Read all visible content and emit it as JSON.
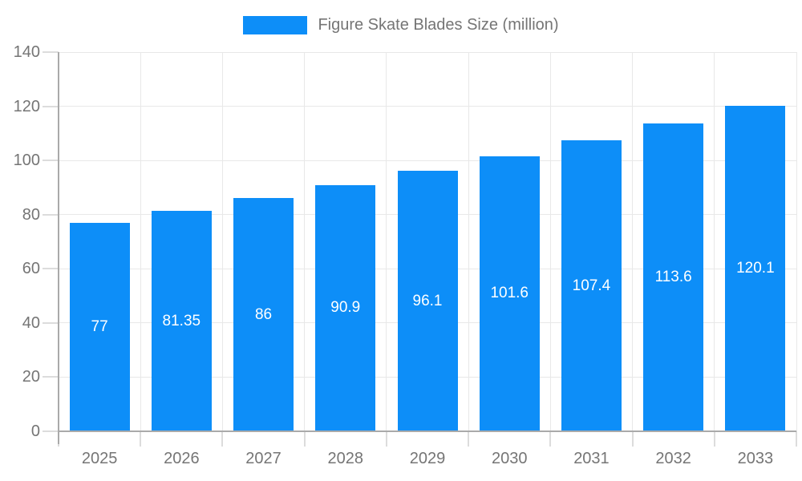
{
  "chart_data": {
    "type": "bar",
    "title": "Figure Skate Blades Size (million)",
    "categories": [
      "2025",
      "2026",
      "2027",
      "2028",
      "2029",
      "2030",
      "2031",
      "2032",
      "2033"
    ],
    "values": [
      77,
      81.35,
      86,
      90.9,
      96.1,
      101.6,
      107.4,
      113.6,
      120.1
    ],
    "value_labels": [
      "77",
      "81.35",
      "86",
      "90.9",
      "96.1",
      "101.6",
      "107.4",
      "113.6",
      "120.1"
    ],
    "xlabel": "",
    "ylabel": "",
    "ylim": [
      0,
      140
    ],
    "y_tick_step": 20,
    "y_tick_labels": [
      "0",
      "20",
      "40",
      "60",
      "80",
      "100",
      "120",
      "140"
    ],
    "grid": true,
    "legend_position": "top",
    "colors": {
      "bar": "#0d8ef8",
      "axis_line": "#aaaaaa",
      "grid_line": "#e8e8e8",
      "tick_line": "#dcdcdc",
      "axis_label": "#757575",
      "value_label": "#ffffff",
      "legend_text": "#757575"
    }
  }
}
